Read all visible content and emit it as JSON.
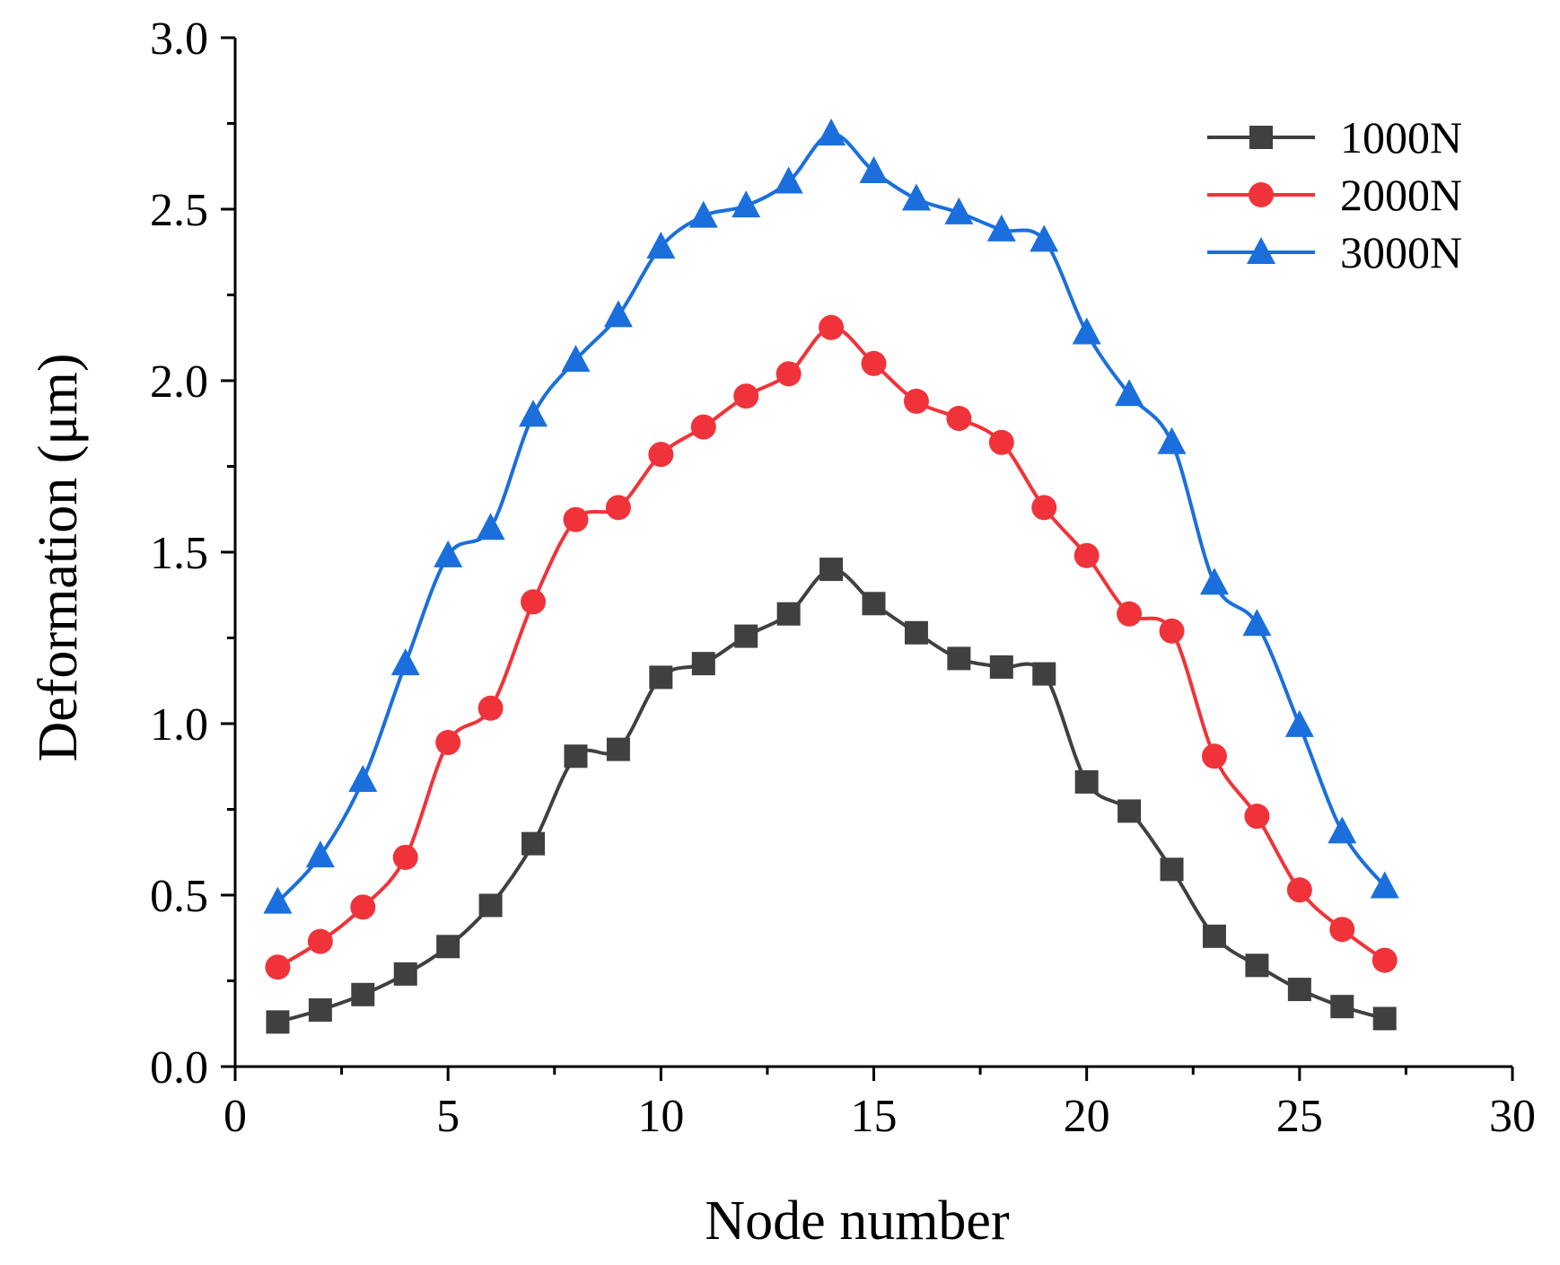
{
  "chart_data": {
    "type": "line",
    "title": "",
    "xlabel": "Node number",
    "ylabel": "Deformation (μm)",
    "xlim": [
      0,
      30
    ],
    "ylim": [
      0.0,
      3.0
    ],
    "xticks": [
      "0",
      "5",
      "10",
      "15",
      "20",
      "25",
      "30"
    ],
    "yticks": [
      "0.0",
      "0.5",
      "1.0",
      "1.5",
      "2.0",
      "2.5",
      "3.0"
    ],
    "grid": false,
    "legend_position": "top-right",
    "x": [
      1,
      2,
      3,
      4,
      5,
      6,
      7,
      8,
      9,
      10,
      11,
      12,
      13,
      14,
      15,
      16,
      17,
      18,
      19,
      20,
      21,
      22,
      23,
      24,
      25,
      26,
      27
    ],
    "series": [
      {
        "name": "1000N",
        "color": "#404040",
        "marker": "square",
        "values": [
          0.13,
          0.165,
          0.21,
          0.27,
          0.35,
          0.47,
          0.65,
          0.905,
          0.925,
          1.135,
          1.175,
          1.255,
          1.32,
          1.45,
          1.35,
          1.265,
          1.19,
          1.165,
          1.145,
          0.83,
          0.745,
          0.575,
          0.38,
          0.295,
          0.225,
          0.175,
          0.14
        ]
      },
      {
        "name": "2000N",
        "color": "#f0333a",
        "marker": "circle",
        "values": [
          0.29,
          0.365,
          0.465,
          0.61,
          0.945,
          1.045,
          1.355,
          1.595,
          1.63,
          1.785,
          1.865,
          1.955,
          2.02,
          2.155,
          2.05,
          1.94,
          1.89,
          1.82,
          1.63,
          1.49,
          1.32,
          1.27,
          0.905,
          0.73,
          0.515,
          0.4,
          0.31
        ]
      },
      {
        "name": "3000N",
        "color": "#1a6fdc",
        "marker": "triangle",
        "values": [
          0.48,
          0.615,
          0.835,
          1.175,
          1.49,
          1.57,
          1.9,
          2.06,
          2.19,
          2.39,
          2.48,
          2.51,
          2.58,
          2.72,
          2.61,
          2.53,
          2.49,
          2.44,
          2.41,
          2.14,
          1.96,
          1.82,
          1.41,
          1.29,
          0.995,
          0.685,
          0.525
        ]
      }
    ]
  }
}
